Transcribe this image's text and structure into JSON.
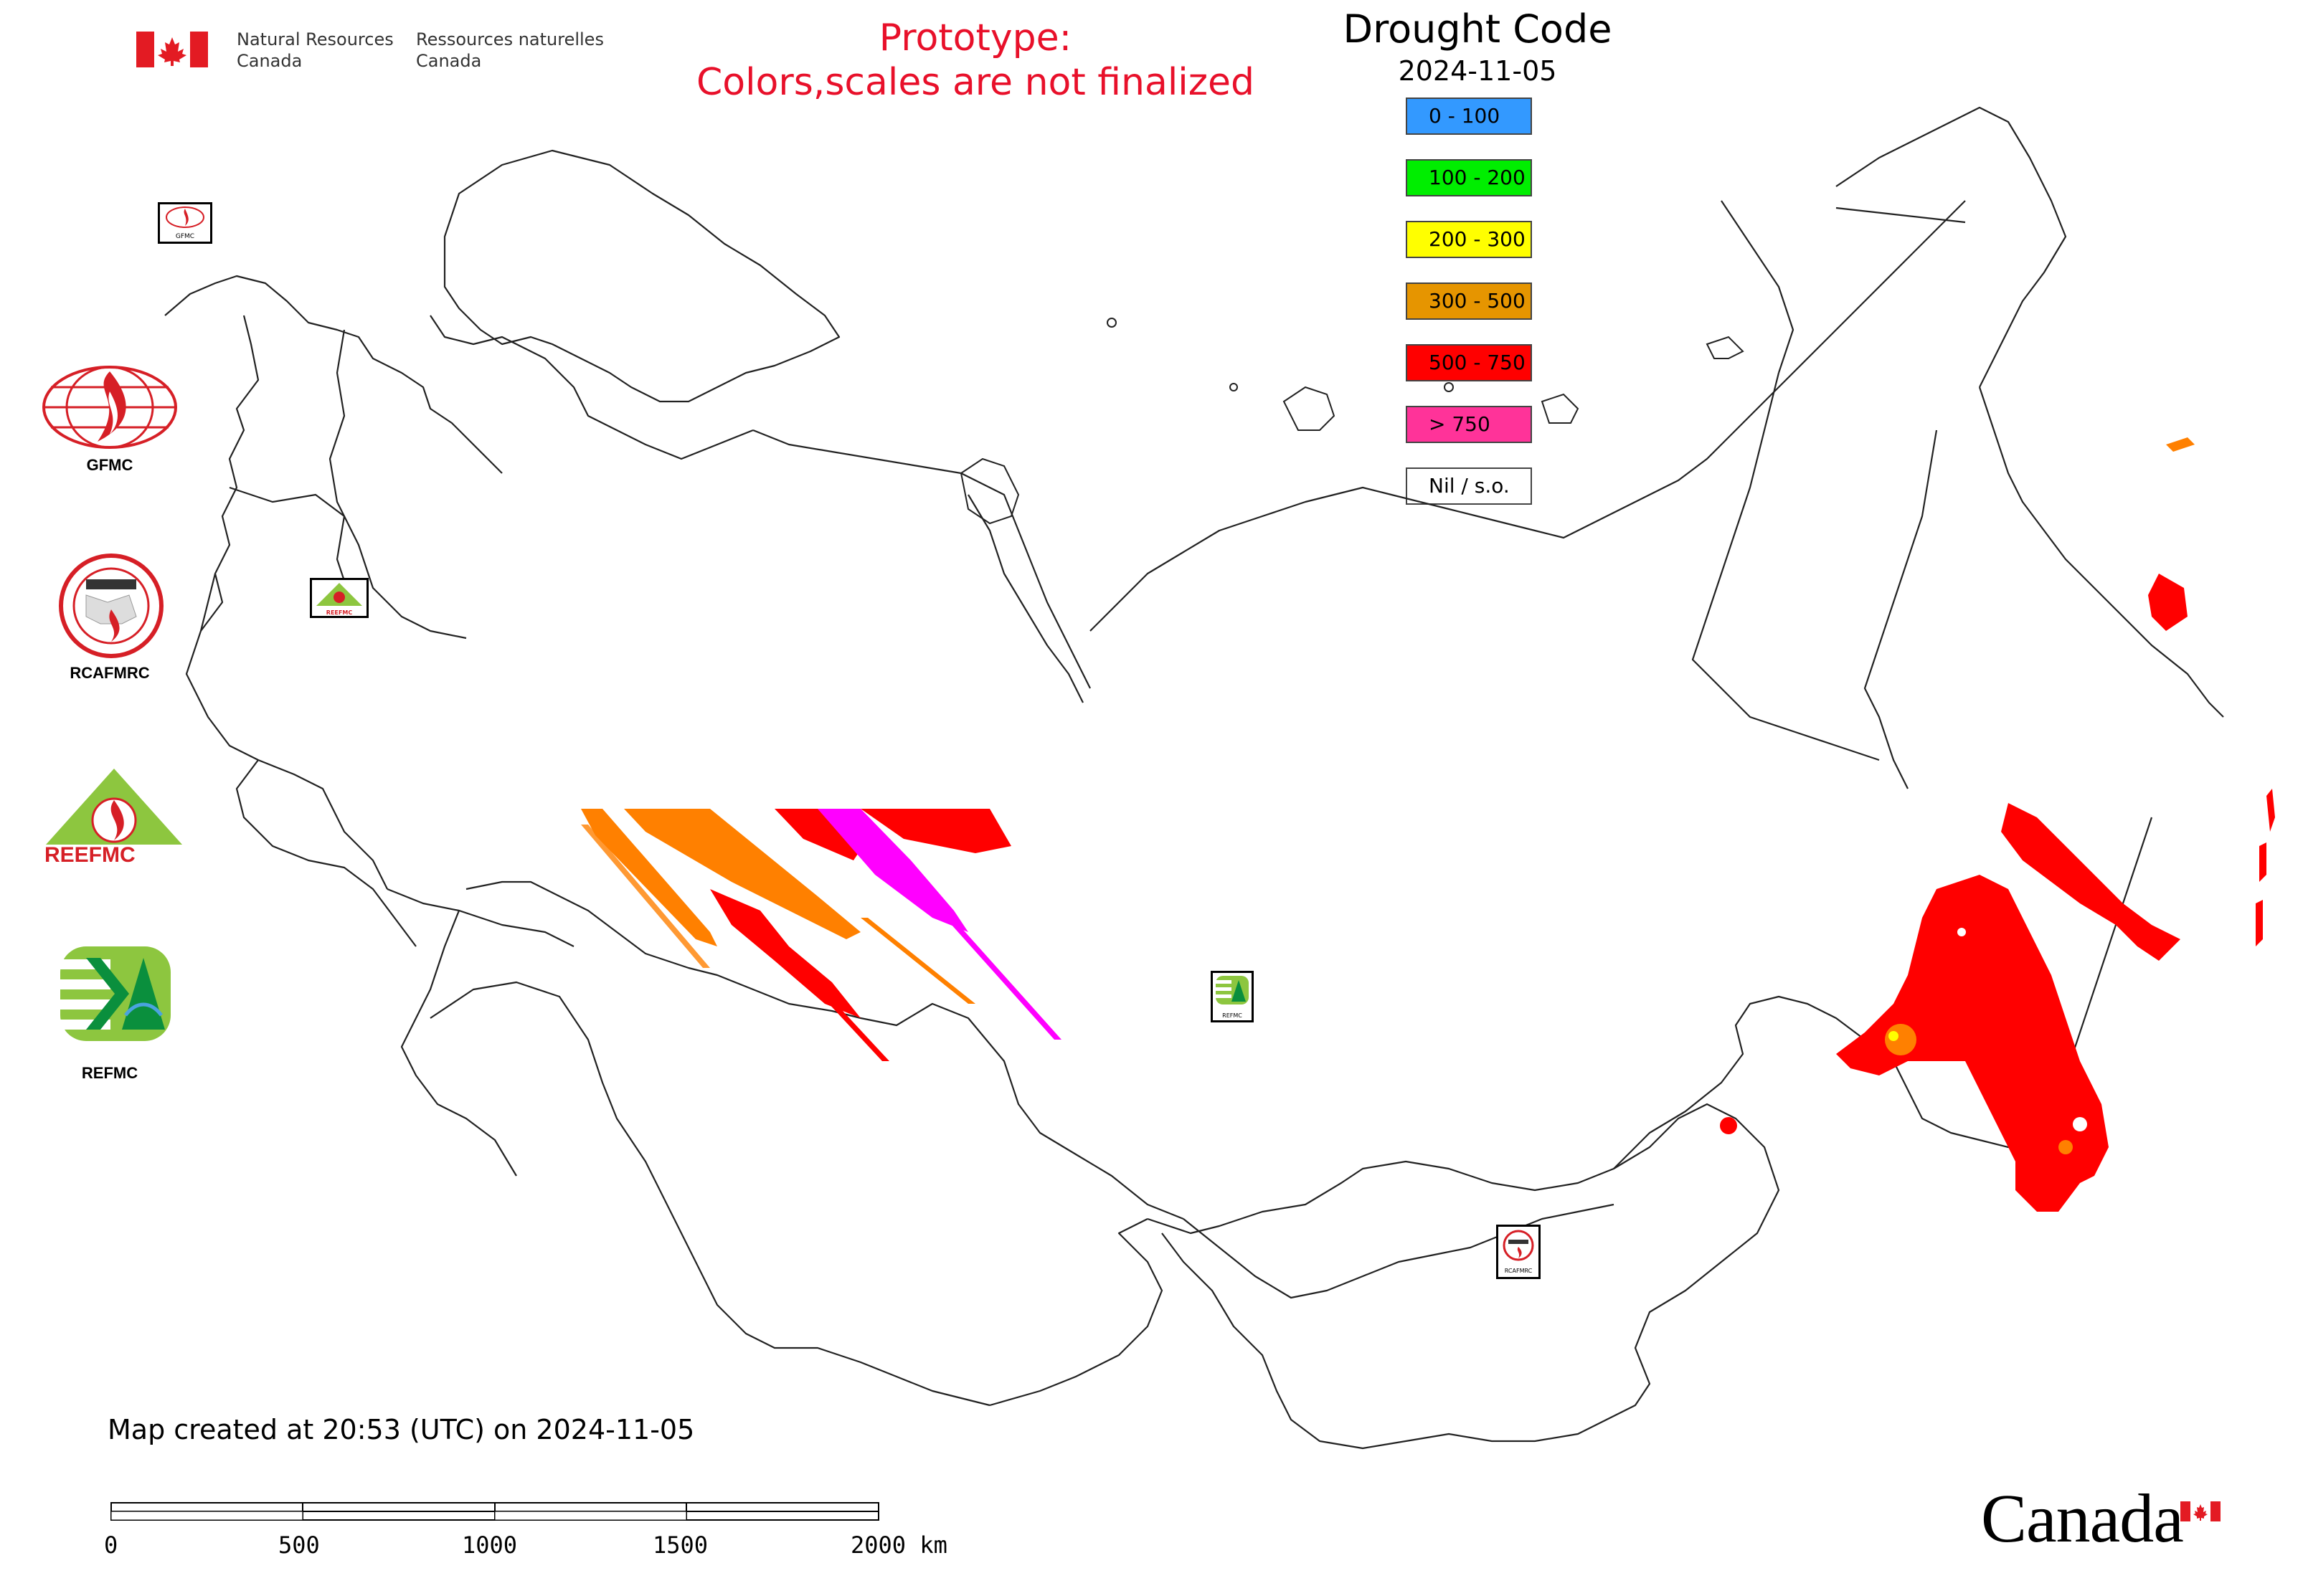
{
  "header": {
    "nrc_en_line1": "Natural Resources",
    "nrc_en_line2": "Canada",
    "nrc_fr_line1": "Ressources naturelles",
    "nrc_fr_line2": "Canada",
    "prototype_line1": "Prototype:",
    "prototype_line2": "Colors,scales are not finalized"
  },
  "map": {
    "title": "Drought Code",
    "date": "2024-11-05",
    "created_note": "Map created at 20:53 (UTC) on 2024-11-05"
  },
  "legend": [
    {
      "label": "0 - 100",
      "color": "#3399ff"
    },
    {
      "label": "100 - 200",
      "color": "#00ee00"
    },
    {
      "label": "200 - 300",
      "color": "#ffff00"
    },
    {
      "label": "300 - 500",
      "color": "#e69500"
    },
    {
      "label": "500 - 750",
      "color": "#ff0000"
    },
    {
      "label": "> 750",
      "color": "#ff3399"
    },
    {
      "label": "Nil / s.o.",
      "color": "#ffffff"
    }
  ],
  "organizations": [
    {
      "name": "GFMC",
      "icon": "gfmc-logo-icon"
    },
    {
      "name": "RCAFMRC",
      "icon": "rcafmrc-logo-icon"
    },
    {
      "name": "REEFMC",
      "icon": "reefmc-logo-icon"
    },
    {
      "name": "REFMC",
      "icon": "refmc-logo-icon"
    }
  ],
  "logo_text": {
    "reefmc": "REEFMC",
    "gfmc_small": "GFMC",
    "reefmc_small": "REEFMC",
    "refmc_small": "REFMC",
    "rcafmrc_small": "RCAFMRC"
  },
  "scale_bar": {
    "labels": [
      "0",
      "500",
      "1000",
      "1500",
      "2000 km"
    ]
  },
  "footer": {
    "wordmark": "Canada"
  },
  "colors": {
    "prototype_red": "#e8102a",
    "boundary": "#222222"
  }
}
